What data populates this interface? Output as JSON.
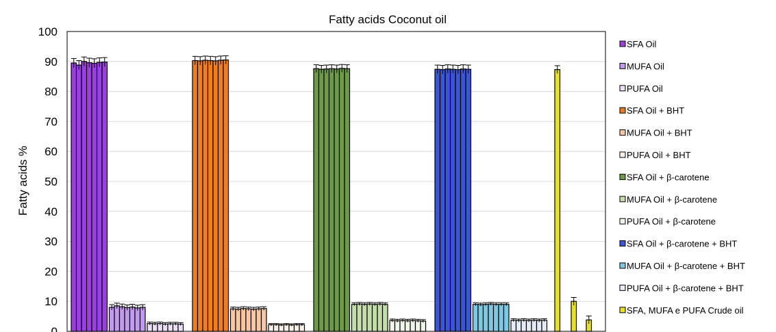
{
  "chart_data": {
    "type": "bar",
    "title": "Fatty acids Coconut oil",
    "ylabel": "Fatty acids %",
    "xlabel": "",
    "ylim": [
      0,
      100
    ],
    "yticks": [
      0,
      10,
      20,
      30,
      40,
      50,
      60,
      70,
      80,
      90,
      100
    ],
    "grid": true,
    "legend_position": "right",
    "series": [
      {
        "name": "SFA Oil",
        "color": "#9b3fe0",
        "group": 0,
        "values": [
          89.5,
          88.8,
          90.0,
          89.6,
          89.4,
          89.7,
          89.8
        ],
        "error": 1.5
      },
      {
        "name": "MUFA Oil",
        "color": "#c39af0",
        "group": 0,
        "values": [
          8.0,
          8.5,
          8.2,
          7.9,
          8.1,
          7.8,
          8.0
        ],
        "error": 0.9
      },
      {
        "name": "PUFA Oil",
        "color": "#ece0f8",
        "group": 0,
        "values": [
          2.6,
          2.5,
          2.6,
          2.4,
          2.5,
          2.5,
          2.4
        ],
        "error": 0.5
      },
      {
        "name": "SFA Oil + BHT",
        "color": "#f07d1e",
        "group": 1,
        "values": [
          90.3,
          90.2,
          90.4,
          90.3,
          90.2,
          90.4,
          90.5
        ],
        "error": 1.4
      },
      {
        "name": "MUFA Oil + BHT",
        "color": "#f7c7a6",
        "group": 1,
        "values": [
          7.5,
          7.4,
          7.6,
          7.5,
          7.4,
          7.5,
          7.6
        ],
        "error": 0.6
      },
      {
        "name": "PUFA Oil + BHT",
        "color": "#fdf2ea",
        "group": 1,
        "values": [
          2.2,
          2.2,
          2.1,
          2.2,
          2.1,
          2.2,
          2.2
        ],
        "error": 0.4
      },
      {
        "name": "SFA Oil + β-carotene",
        "color": "#6c9a48",
        "group": 2,
        "values": [
          87.6,
          87.4,
          87.5,
          87.6,
          87.5,
          87.7,
          87.6
        ],
        "error": 1.3
      },
      {
        "name": "MUFA Oil + β-carotene",
        "color": "#c5dcab",
        "group": 2,
        "values": [
          9.0,
          9.1,
          9.0,
          9.1,
          9.0,
          9.1,
          9.0
        ],
        "error": 0.5
      },
      {
        "name": "PUFA Oil + β-carotene",
        "color": "#f0f5ea",
        "group": 2,
        "values": [
          3.6,
          3.5,
          3.6,
          3.5,
          3.6,
          3.5,
          3.4
        ],
        "error": 0.5
      },
      {
        "name": "SFA Oil + β-carotene + BHT",
        "color": "#3a55d6",
        "group": 3,
        "values": [
          87.4,
          87.3,
          87.5,
          87.4,
          87.3,
          87.5,
          87.4
        ],
        "error": 1.4
      },
      {
        "name": "MUFA Oil + β-carotene + BHT",
        "color": "#7fc7e3",
        "group": 3,
        "values": [
          9.0,
          8.9,
          9.0,
          9.1,
          9.0,
          9.0,
          9.0
        ],
        "error": 0.5
      },
      {
        "name": "PUFA Oil + β-carotene + BHT",
        "color": "#e4ecf8",
        "group": 3,
        "values": [
          3.7,
          3.6,
          3.7,
          3.6,
          3.7,
          3.6,
          3.7
        ],
        "error": 0.5
      },
      {
        "name": "SFA, MUFA e PUFA Crude oil",
        "color": "#e6e02a",
        "group": 4,
        "values": [
          87.3,
          10.0,
          3.8
        ],
        "error": 1.3
      }
    ]
  }
}
